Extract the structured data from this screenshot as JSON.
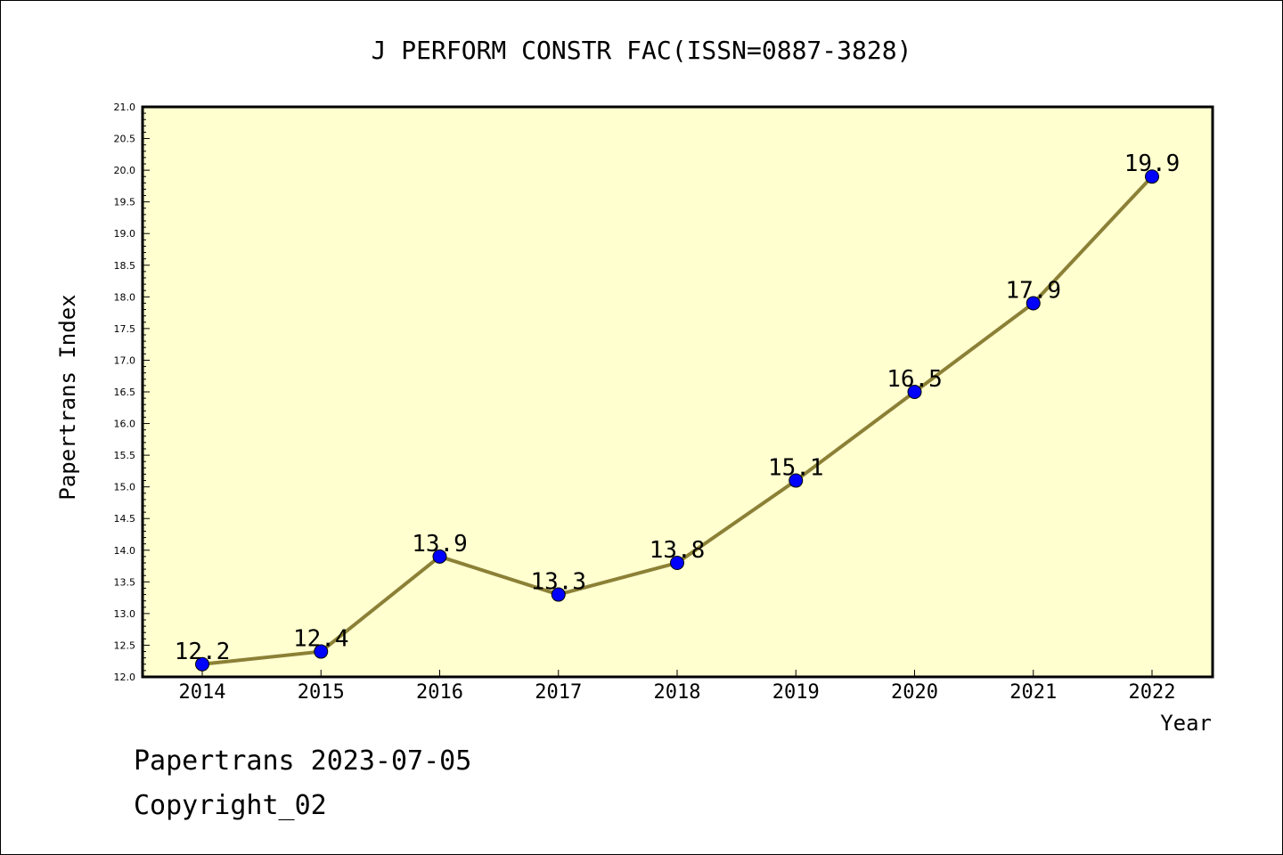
{
  "chart_data": {
    "type": "line",
    "title": "J PERFORM CONSTR FAC(ISSN=0887-3828)",
    "xlabel": "Year",
    "ylabel": "Papertrans Index",
    "x": [
      "2014",
      "2015",
      "2016",
      "2017",
      "2018",
      "2019",
      "2020",
      "2021",
      "2022"
    ],
    "series": [
      {
        "values": [
          12.2,
          12.4,
          13.9,
          13.3,
          13.8,
          15.1,
          16.5,
          17.9,
          19.9
        ]
      }
    ],
    "data_labels": [
      "12.2",
      "12.4",
      "13.9",
      "13.3",
      "13.8",
      "15.1",
      "16.5",
      "17.9",
      "19.9"
    ],
    "ylim": [
      12.0,
      21.0
    ],
    "yticks": [
      "12.0",
      "12.5",
      "13.0",
      "13.5",
      "14.0",
      "14.5",
      "15.0",
      "15.5",
      "16.0",
      "16.5",
      "17.0",
      "17.5",
      "18.0",
      "18.5",
      "19.0",
      "19.5",
      "20.0",
      "20.5",
      "21.0"
    ],
    "grid": false,
    "colors": {
      "plot_bg": "#ffffd0",
      "line": "#8b8036",
      "marker": "#0000ff",
      "text": "#000000"
    }
  },
  "footer": {
    "source": "Papertrans 2023-07-05",
    "copyright": "Copyright_02"
  }
}
